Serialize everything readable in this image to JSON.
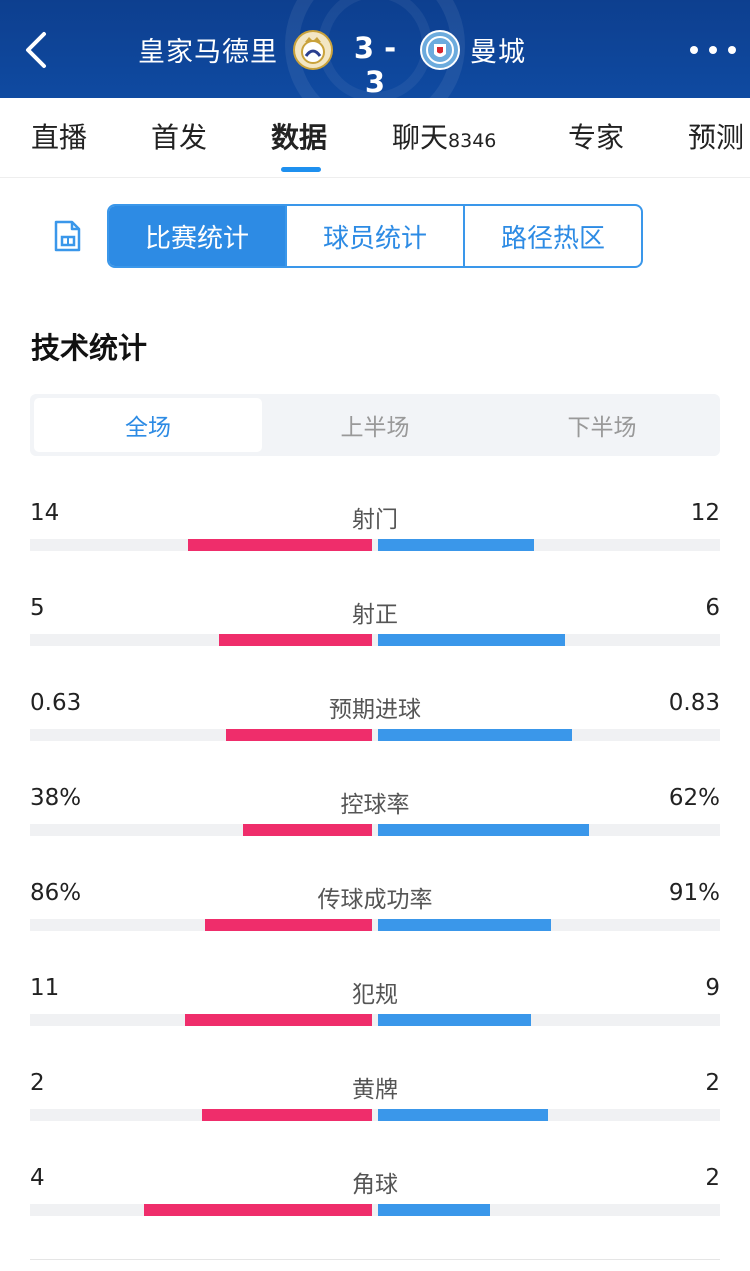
{
  "match": {
    "home_team": "皇家马德里",
    "away_team": "曼城",
    "score": "3 - 3",
    "home_badge": "real-madrid-crest",
    "away_badge": "man-city-crest"
  },
  "tabs": [
    {
      "label": "直播",
      "badge": ""
    },
    {
      "label": "首发",
      "badge": ""
    },
    {
      "label": "数据",
      "badge": ""
    },
    {
      "label": "聊天",
      "badge": "8346"
    },
    {
      "label": "专家",
      "badge": ""
    },
    {
      "label": "预测",
      "badge": ""
    }
  ],
  "active_tab": "数据",
  "segments": [
    "比赛统计",
    "球员统计",
    "路径热区"
  ],
  "active_segment": "比赛统计",
  "section_title": "技术统计",
  "periods": [
    "全场",
    "上半场",
    "下半场"
  ],
  "active_period": "全场",
  "colors": {
    "home": "#ef2d6b",
    "away": "#3a97ea",
    "accent": "#2d8be4",
    "header": "#0f4aa1"
  },
  "stats": [
    {
      "name": "射门",
      "home": "14",
      "away": "12",
      "home_frac": 0.54,
      "away_frac": 0.46
    },
    {
      "name": "射正",
      "home": "5",
      "away": "6",
      "home_frac": 0.45,
      "away_frac": 0.55
    },
    {
      "name": "预期进球",
      "home": "0.63",
      "away": "0.83",
      "home_frac": 0.43,
      "away_frac": 0.57
    },
    {
      "name": "控球率",
      "home": "38%",
      "away": "62%",
      "home_frac": 0.38,
      "away_frac": 0.62
    },
    {
      "name": "传球成功率",
      "home": "86%",
      "away": "91%",
      "home_frac": 0.49,
      "away_frac": 0.51
    },
    {
      "name": "犯规",
      "home": "11",
      "away": "9",
      "home_frac": 0.55,
      "away_frac": 0.45
    },
    {
      "name": "黄牌",
      "home": "2",
      "away": "2",
      "home_frac": 0.5,
      "away_frac": 0.5
    },
    {
      "name": "角球",
      "home": "4",
      "away": "2",
      "home_frac": 0.67,
      "away_frac": 0.33
    }
  ]
}
